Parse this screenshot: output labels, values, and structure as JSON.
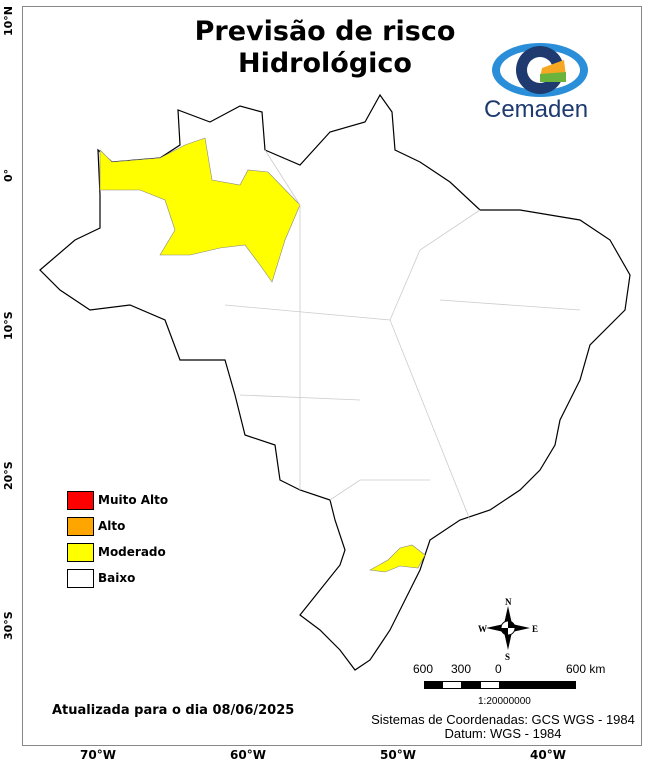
{
  "title_line1": "Previsão de risco",
  "title_line2": "Hidrológico",
  "logo": {
    "text": "Cemaden",
    "colors": [
      "#1e3a6e",
      "#2a8fd8",
      "#f7a823",
      "#6ab33c"
    ]
  },
  "axes": {
    "lon_labels": [
      "70°W",
      "60°W",
      "50°W",
      "40°W"
    ],
    "lat_labels": [
      "10°N",
      "0°",
      "10°S",
      "20°S",
      "30°S"
    ]
  },
  "legend": [
    {
      "label": "Muito Alto",
      "color": "#ff0000"
    },
    {
      "label": "Alto",
      "color": "#ffa500"
    },
    {
      "label": "Moderado",
      "color": "#ffff00"
    },
    {
      "label": "Baixo",
      "color": "#ffffff"
    }
  ],
  "highlighted_level": "Moderado",
  "updated": "Atualizada para o dia 08/06/2025",
  "scale": {
    "labels": [
      "600",
      "300",
      "0",
      "600 km"
    ],
    "ratio": "1:20000000"
  },
  "compass": {
    "n": "N",
    "s": "S",
    "e": "E",
    "w": "W"
  },
  "crs_line1": "Sistemas de Coordenadas: GCS WGS - 1984",
  "crs_line2": "Datum: WGS - 1984"
}
